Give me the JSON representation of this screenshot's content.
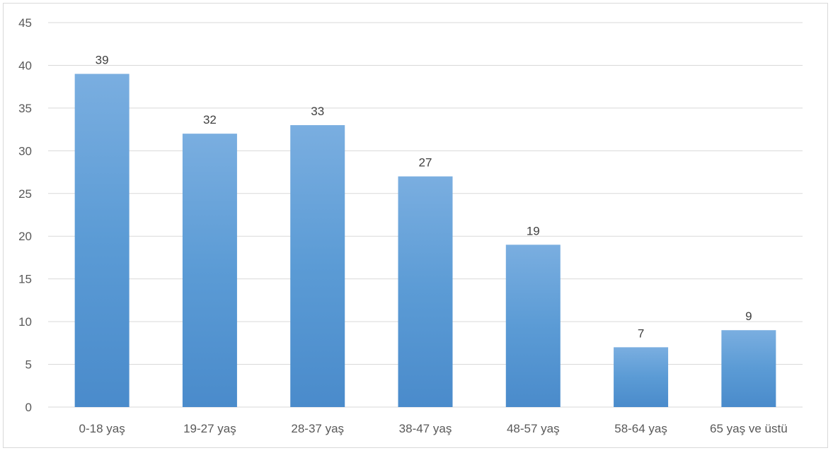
{
  "chart_data": {
    "type": "bar",
    "categories": [
      "0-18 yaş",
      "19-27 yaş",
      "28-37 yaş",
      "38-47 yaş",
      "48-57 yaş",
      "58-64 yaş",
      "65 yaş ve üstü"
    ],
    "values": [
      39,
      32,
      33,
      27,
      19,
      7,
      9
    ],
    "ylim": [
      0,
      45
    ],
    "yticks": [
      0,
      5,
      10,
      15,
      20,
      25,
      30,
      35,
      40,
      45
    ],
    "grid": true,
    "data_labels": true,
    "bar_color": "#5b9bd5",
    "bar_color_light": "#7aaee0",
    "bar_color_dark": "#4a8bcb",
    "grid_color": "#d9d9d9"
  }
}
